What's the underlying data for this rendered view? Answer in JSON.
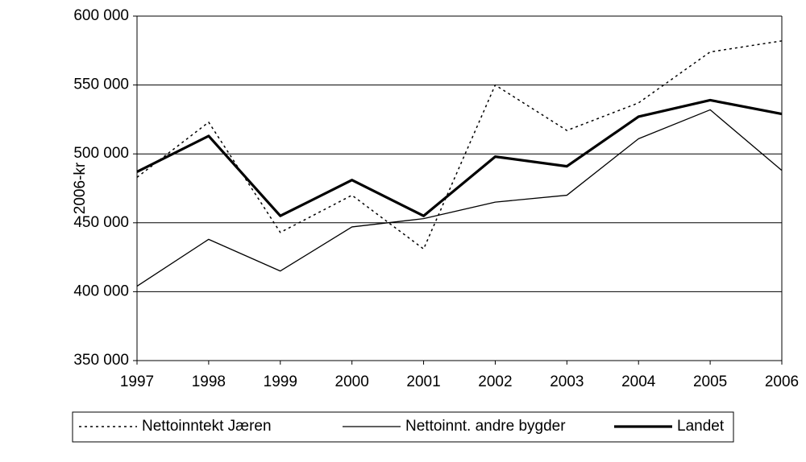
{
  "chart_data": {
    "type": "line",
    "y_label": "2006-kr",
    "categories": [
      "1997",
      "1998",
      "1999",
      "2000",
      "2001",
      "2002",
      "2003",
      "2004",
      "2005",
      "2006"
    ],
    "series": [
      {
        "name": "Nettoinntekt Jæren",
        "color": "#000000",
        "style": "dotted",
        "line_width": 1.5,
        "values": [
          483000,
          523000,
          443000,
          470000,
          431000,
          550000,
          517000,
          537000,
          574000,
          582000
        ]
      },
      {
        "name": "Nettoinnt. andre bygder",
        "color": "#000000",
        "style": "solid",
        "line_width": 1.3,
        "values": [
          404000,
          438000,
          415000,
          447000,
          453000,
          465000,
          470000,
          511000,
          532000,
          488000
        ]
      },
      {
        "name": "Landet",
        "color": "#000000",
        "style": "solid",
        "line_width": 3.2,
        "values": [
          487000,
          513000,
          455000,
          481000,
          455000,
          498000,
          491000,
          527000,
          539000,
          529000
        ]
      }
    ],
    "ylim": [
      350000,
      600000
    ],
    "yticks": [
      {
        "value": 350000,
        "label": "350 000"
      },
      {
        "value": 400000,
        "label": "400 000"
      },
      {
        "value": 450000,
        "label": "450 000"
      },
      {
        "value": 500000,
        "label": "500 000"
      },
      {
        "value": 550000,
        "label": "550 000"
      },
      {
        "value": 600000,
        "label": "600 000"
      }
    ],
    "grid": true,
    "legend": "bottom"
  }
}
